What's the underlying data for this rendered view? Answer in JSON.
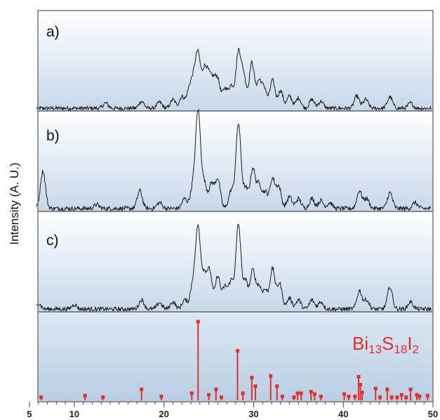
{
  "chart_data": {
    "type": "line",
    "ylabel": "Intensity (A. U.)",
    "xlim": [
      5,
      50
    ],
    "x_ticks": [
      5,
      10,
      20,
      30,
      40,
      50
    ],
    "panels": [
      {
        "label": "a)",
        "peaks": [
          [
            13.5,
            0.06
          ],
          [
            17.5,
            0.08
          ],
          [
            19.5,
            0.07
          ],
          [
            21,
            0.1
          ],
          [
            22,
            0.13
          ],
          [
            22.8,
            0.2
          ],
          [
            23.3,
            0.28
          ],
          [
            23.8,
            0.58
          ],
          [
            24.5,
            0.4
          ],
          [
            25,
            0.3
          ],
          [
            25.5,
            0.25
          ],
          [
            26,
            0.3
          ],
          [
            26.8,
            0.22
          ],
          [
            27.5,
            0.25
          ],
          [
            28.3,
            0.63
          ],
          [
            28.9,
            0.36
          ],
          [
            29.8,
            0.52
          ],
          [
            30.6,
            0.3
          ],
          [
            31.2,
            0.22
          ],
          [
            32.1,
            0.32
          ],
          [
            33,
            0.2
          ],
          [
            34,
            0.14
          ],
          [
            35,
            0.12
          ],
          [
            36.5,
            0.1
          ],
          [
            37.5,
            0.08
          ],
          [
            41.5,
            0.14
          ],
          [
            42.5,
            0.1
          ],
          [
            45.2,
            0.13
          ],
          [
            47.5,
            0.06
          ]
        ]
      },
      {
        "label": "b)",
        "peaks": [
          [
            6.5,
            0.38
          ],
          [
            12.5,
            0.04
          ],
          [
            17.3,
            0.18
          ],
          [
            19.5,
            0.06
          ],
          [
            22.3,
            0.1
          ],
          [
            23.2,
            0.2
          ],
          [
            23.8,
            0.98
          ],
          [
            24.5,
            0.25
          ],
          [
            25.3,
            0.25
          ],
          [
            26,
            0.3
          ],
          [
            27.5,
            0.18
          ],
          [
            28.3,
            0.86
          ],
          [
            29.1,
            0.2
          ],
          [
            29.9,
            0.4
          ],
          [
            30.6,
            0.24
          ],
          [
            31.3,
            0.16
          ],
          [
            32.1,
            0.3
          ],
          [
            32.8,
            0.22
          ],
          [
            34,
            0.12
          ],
          [
            35,
            0.1
          ],
          [
            36.5,
            0.1
          ],
          [
            37.5,
            0.08
          ],
          [
            38.5,
            0.06
          ],
          [
            41.8,
            0.18
          ],
          [
            42.6,
            0.1
          ],
          [
            45.2,
            0.16
          ],
          [
            48,
            0.06
          ]
        ]
      },
      {
        "label": "c)",
        "peaks": [
          [
            6,
            0.06
          ],
          [
            10,
            0.05
          ],
          [
            17.5,
            0.1
          ],
          [
            19.5,
            0.07
          ],
          [
            21,
            0.08
          ],
          [
            22.3,
            0.1
          ],
          [
            23.2,
            0.26
          ],
          [
            23.8,
            0.88
          ],
          [
            24.5,
            0.35
          ],
          [
            25.1,
            0.4
          ],
          [
            26,
            0.36
          ],
          [
            26.8,
            0.24
          ],
          [
            27.5,
            0.3
          ],
          [
            28.3,
            0.92
          ],
          [
            29.1,
            0.3
          ],
          [
            29.9,
            0.42
          ],
          [
            30.6,
            0.24
          ],
          [
            31.3,
            0.2
          ],
          [
            32.1,
            0.44
          ],
          [
            32.9,
            0.28
          ],
          [
            34,
            0.12
          ],
          [
            35,
            0.1
          ],
          [
            36.5,
            0.1
          ],
          [
            37.5,
            0.08
          ],
          [
            41.8,
            0.2
          ],
          [
            42.6,
            0.1
          ],
          [
            45.2,
            0.24
          ],
          [
            47.5,
            0.08
          ]
        ]
      }
    ],
    "reference": {
      "label_main": "Bi",
      "label_parts": [
        {
          "text": "Bi",
          "sub": false
        },
        {
          "text": "13",
          "sub": true
        },
        {
          "text": "S",
          "sub": false
        },
        {
          "text": "18",
          "sub": true
        },
        {
          "text": "I",
          "sub": false
        },
        {
          "text": "2",
          "sub": true
        }
      ],
      "color": "#e03030",
      "sticks": [
        [
          6.3,
          0.04
        ],
        [
          11.2,
          0.06
        ],
        [
          13.2,
          0.04
        ],
        [
          17.5,
          0.14
        ],
        [
          19.7,
          0.05
        ],
        [
          23.1,
          0.09
        ],
        [
          23.8,
          1.0
        ],
        [
          25,
          0.07
        ],
        [
          25.8,
          0.14
        ],
        [
          26.4,
          0.04
        ],
        [
          28.2,
          0.63
        ],
        [
          28.8,
          0.09
        ],
        [
          29.8,
          0.29
        ],
        [
          30.2,
          0.18
        ],
        [
          31.9,
          0.31
        ],
        [
          32.6,
          0.18
        ],
        [
          33.2,
          0.05
        ],
        [
          34.5,
          0.04
        ],
        [
          34.9,
          0.09
        ],
        [
          35.3,
          0.09
        ],
        [
          36.4,
          0.11
        ],
        [
          36.8,
          0.08
        ],
        [
          37.5,
          0.05
        ],
        [
          40.1,
          0.08
        ],
        [
          40.6,
          0.05
        ],
        [
          41.3,
          0.05
        ],
        [
          41.7,
          0.3
        ],
        [
          41.9,
          0.2
        ],
        [
          42.1,
          0.1
        ],
        [
          43.6,
          0.15
        ],
        [
          44.1,
          0.04
        ],
        [
          44.9,
          0.14
        ],
        [
          45.4,
          0.04
        ],
        [
          46,
          0.04
        ],
        [
          46.5,
          0.07
        ],
        [
          47,
          0.04
        ],
        [
          47.5,
          0.14
        ],
        [
          48.2,
          0.07
        ],
        [
          48.5,
          0.05
        ],
        [
          49.4,
          0.06
        ]
      ]
    }
  }
}
